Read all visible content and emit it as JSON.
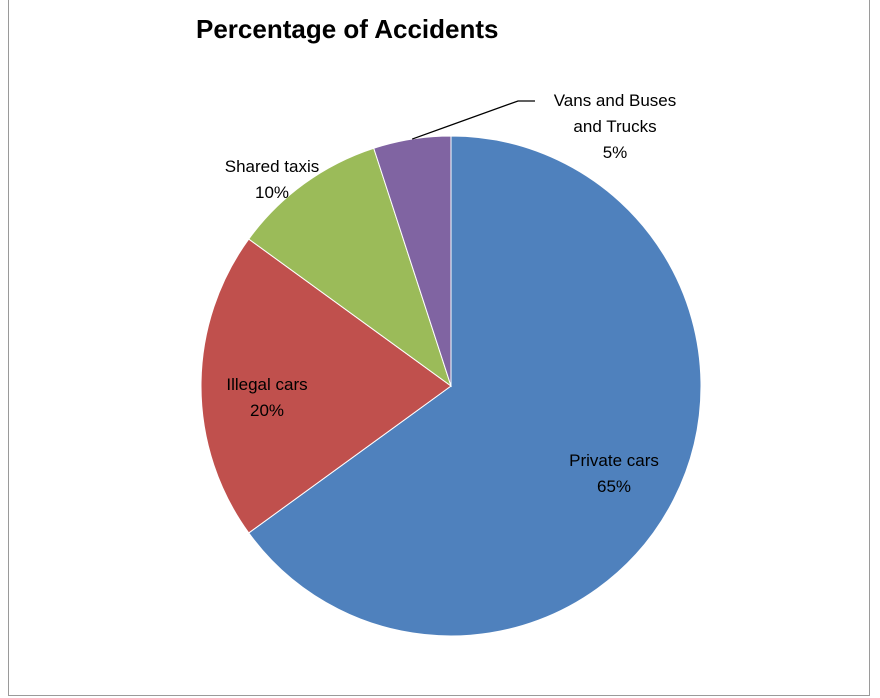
{
  "chart_data": {
    "type": "pie",
    "title": "Percentage of Accidents",
    "categories": [
      "Private cars",
      "Illegal cars",
      "Shared taxis",
      "Vans and Buses and Trucks"
    ],
    "values": [
      65,
      20,
      10,
      5
    ],
    "data_labels": [
      "65%",
      "20%",
      "10%",
      "5%"
    ],
    "label_lines": [
      [
        "Private cars",
        "65%"
      ],
      [
        "Illegal cars",
        "20%"
      ],
      [
        "Shared taxis",
        "10%"
      ],
      [
        "Vans and Buses",
        "and Trucks",
        "5%"
      ]
    ],
    "colors": [
      "#4f81bd",
      "#c0504d",
      "#9bbb59",
      "#8064a2"
    ],
    "start_angle": "top (12 o'clock)",
    "direction": "clockwise",
    "legend": "none",
    "grid": false
  }
}
